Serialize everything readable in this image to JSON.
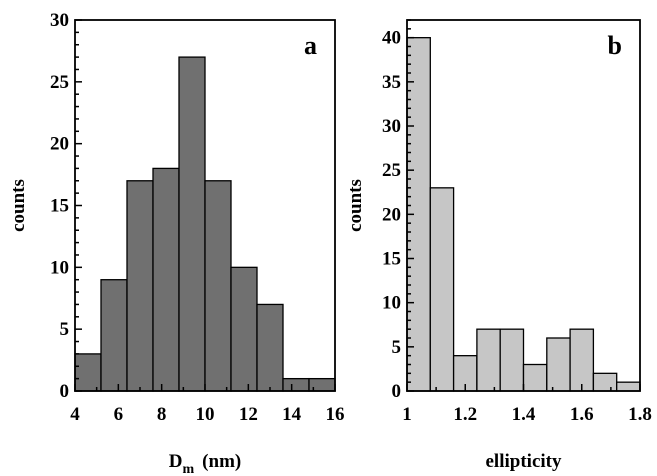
{
  "chart_data": [
    {
      "type": "bar",
      "panel_label": "a",
      "xlabel": "D",
      "xlabel_sub": "m",
      "xlabel_unit": "(nm)",
      "ylabel": "counts",
      "bin_edges": [
        4,
        5.2,
        6.4,
        7.6,
        8.8,
        10,
        11.2,
        12.4,
        13.6,
        14.8,
        16
      ],
      "values": [
        3,
        9,
        17,
        18,
        27,
        17,
        10,
        7,
        1,
        1
      ],
      "xlim": [
        4,
        16
      ],
      "ylim": [
        0,
        30
      ],
      "xticks": [
        "4",
        "6",
        "8",
        "10",
        "12",
        "14",
        "16"
      ],
      "xtick_values": [
        4,
        6,
        8,
        10,
        12,
        14,
        16
      ],
      "yticks": [
        "0",
        "5",
        "10",
        "15",
        "20",
        "25",
        "30"
      ],
      "ytick_values": [
        0,
        5,
        10,
        15,
        20,
        25,
        30
      ],
      "bar_color": "#707070",
      "grid": false
    },
    {
      "type": "bar",
      "panel_label": "b",
      "xlabel": "ellipticity",
      "ylabel": "counts",
      "bin_edges": [
        1.0,
        1.08,
        1.16,
        1.24,
        1.32,
        1.4,
        1.48,
        1.56,
        1.64,
        1.72,
        1.8
      ],
      "values": [
        40,
        23,
        4,
        7,
        7,
        3,
        6,
        7,
        2,
        1
      ],
      "xlim": [
        1.0,
        1.8
      ],
      "ylim": [
        0,
        42
      ],
      "xticks": [
        "1",
        "1.2",
        "1.4",
        "1.6",
        "1.8"
      ],
      "xtick_values": [
        1.0,
        1.2,
        1.4,
        1.6,
        1.8
      ],
      "yticks": [
        "0",
        "5",
        "10",
        "15",
        "20",
        "25",
        "30",
        "35",
        "40"
      ],
      "ytick_values": [
        0,
        5,
        10,
        15,
        20,
        25,
        30,
        35,
        40
      ],
      "bar_color": "#c6c6c6",
      "grid": false
    }
  ]
}
